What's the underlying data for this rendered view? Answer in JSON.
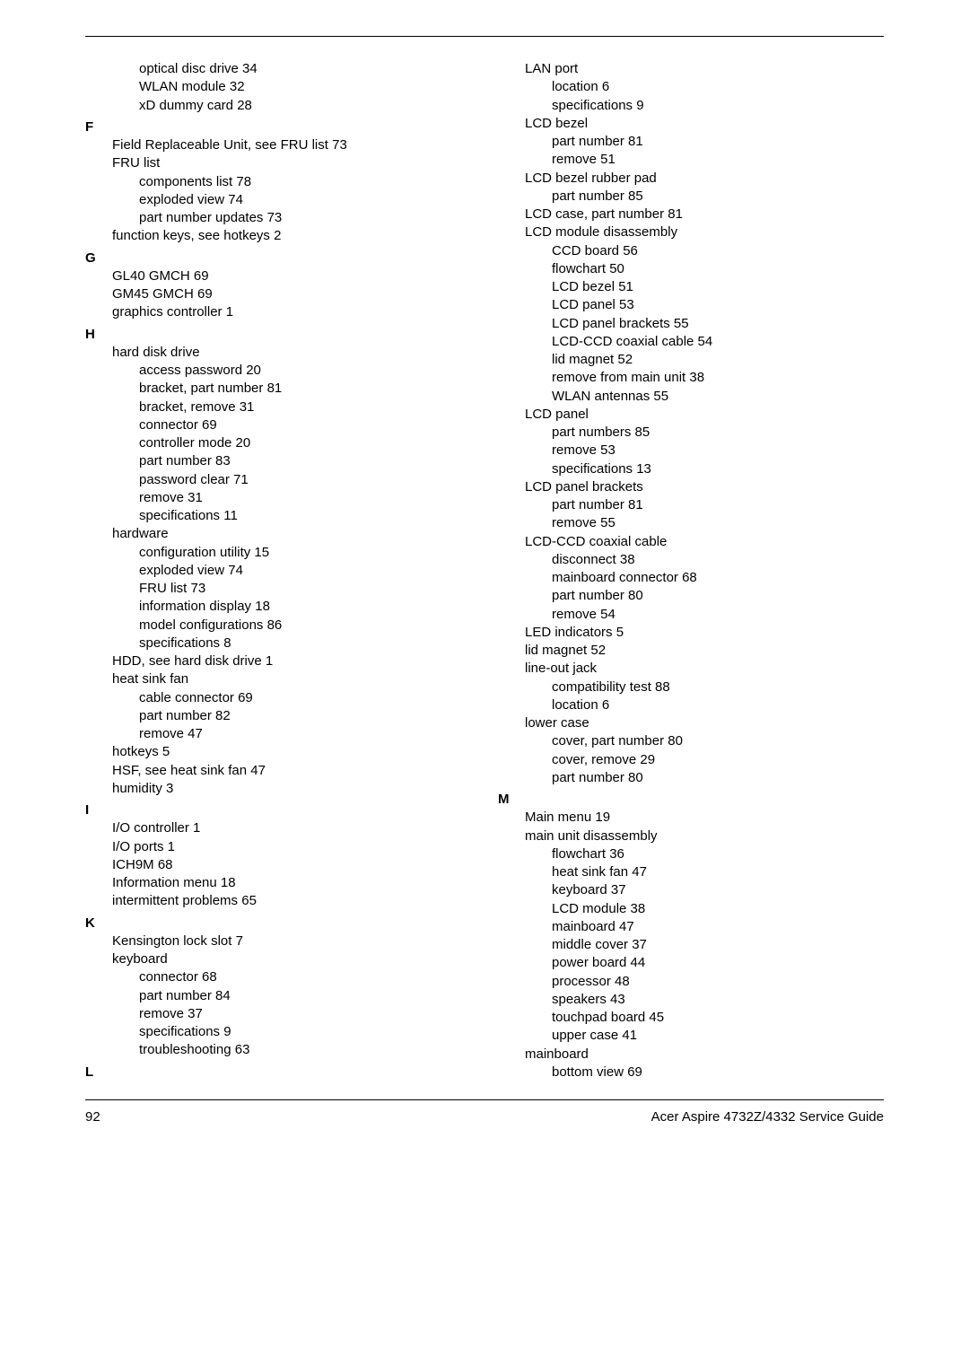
{
  "footer": {
    "page_number": "92",
    "title": "Acer Aspire 4732Z/4332 Service Guide"
  },
  "left": [
    {
      "cls": "lvl2",
      "t": "optical disc drive 34"
    },
    {
      "cls": "lvl2",
      "t": "WLAN module 32"
    },
    {
      "cls": "lvl2",
      "t": "xD dummy card 28"
    },
    {
      "cls": "letter",
      "t": "F"
    },
    {
      "cls": "lvl1",
      "t": "Field Replaceable Unit, see FRU list 73"
    },
    {
      "cls": "lvl1",
      "t": "FRU list"
    },
    {
      "cls": "lvl2",
      "t": "components list 78"
    },
    {
      "cls": "lvl2",
      "t": "exploded view 74"
    },
    {
      "cls": "lvl2",
      "t": "part number updates 73"
    },
    {
      "cls": "lvl1",
      "t": "function keys, see hotkeys 2"
    },
    {
      "cls": "letter",
      "t": "G"
    },
    {
      "cls": "lvl1",
      "t": "GL40 GMCH 69"
    },
    {
      "cls": "lvl1",
      "t": "GM45 GMCH 69"
    },
    {
      "cls": "lvl1",
      "t": "graphics controller 1"
    },
    {
      "cls": "letter",
      "t": "H"
    },
    {
      "cls": "lvl1",
      "t": "hard disk drive"
    },
    {
      "cls": "lvl2",
      "t": "access password 20"
    },
    {
      "cls": "lvl2",
      "t": "bracket, part number 81"
    },
    {
      "cls": "lvl2",
      "t": "bracket, remove 31"
    },
    {
      "cls": "lvl2",
      "t": "connector 69"
    },
    {
      "cls": "lvl2",
      "t": "controller mode 20"
    },
    {
      "cls": "lvl2",
      "t": "part number 83"
    },
    {
      "cls": "lvl2",
      "t": "password clear 71"
    },
    {
      "cls": "lvl2",
      "t": "remove 31"
    },
    {
      "cls": "lvl2",
      "t": "specifications 11"
    },
    {
      "cls": "lvl1",
      "t": "hardware"
    },
    {
      "cls": "lvl2",
      "t": "configuration utility 15"
    },
    {
      "cls": "lvl2",
      "t": "exploded view 74"
    },
    {
      "cls": "lvl2",
      "t": "FRU list 73"
    },
    {
      "cls": "lvl2",
      "t": "information display 18"
    },
    {
      "cls": "lvl2",
      "t": "model configurations 86"
    },
    {
      "cls": "lvl2",
      "t": "specifications 8"
    },
    {
      "cls": "lvl1",
      "t": "HDD, see hard disk drive 1"
    },
    {
      "cls": "lvl1",
      "t": "heat sink fan"
    },
    {
      "cls": "lvl2",
      "t": "cable connector 69"
    },
    {
      "cls": "lvl2",
      "t": "part number 82"
    },
    {
      "cls": "lvl2",
      "t": "remove 47"
    },
    {
      "cls": "lvl1",
      "t": "hotkeys 5"
    },
    {
      "cls": "lvl1",
      "t": "HSF, see heat sink fan 47"
    },
    {
      "cls": "lvl1",
      "t": "humidity 3"
    },
    {
      "cls": "letter",
      "t": "I"
    },
    {
      "cls": "lvl1",
      "t": "I/O controller 1"
    },
    {
      "cls": "lvl1",
      "t": "I/O ports 1"
    },
    {
      "cls": "lvl1",
      "t": "ICH9M 68"
    },
    {
      "cls": "lvl1",
      "t": "Information menu 18"
    },
    {
      "cls": "lvl1",
      "t": "intermittent problems 65"
    },
    {
      "cls": "letter",
      "t": "K"
    },
    {
      "cls": "lvl1",
      "t": "Kensington lock slot 7"
    },
    {
      "cls": "lvl1",
      "t": "keyboard"
    },
    {
      "cls": "lvl2",
      "t": "connector 68"
    },
    {
      "cls": "lvl2",
      "t": "part number 84"
    },
    {
      "cls": "lvl2",
      "t": "remove 37"
    },
    {
      "cls": "lvl2",
      "t": "specifications 9"
    },
    {
      "cls": "lvl2",
      "t": "troubleshooting 63"
    },
    {
      "cls": "letter",
      "t": "L"
    }
  ],
  "right": [
    {
      "cls": "lvl1",
      "t": "LAN port"
    },
    {
      "cls": "lvl2",
      "t": "location 6"
    },
    {
      "cls": "lvl2",
      "t": "specifications 9"
    },
    {
      "cls": "lvl1",
      "t": "LCD bezel"
    },
    {
      "cls": "lvl2",
      "t": "part number 81"
    },
    {
      "cls": "lvl2",
      "t": "remove 51"
    },
    {
      "cls": "lvl1",
      "t": "LCD bezel rubber pad"
    },
    {
      "cls": "lvl2",
      "t": "part number 85"
    },
    {
      "cls": "lvl1",
      "t": "LCD case, part number 81"
    },
    {
      "cls": "lvl1",
      "t": "LCD module disassembly"
    },
    {
      "cls": "lvl2",
      "t": "CCD board 56"
    },
    {
      "cls": "lvl2",
      "t": "flowchart 50"
    },
    {
      "cls": "lvl2",
      "t": "LCD bezel 51"
    },
    {
      "cls": "lvl2",
      "t": "LCD panel 53"
    },
    {
      "cls": "lvl2",
      "t": "LCD panel brackets 55"
    },
    {
      "cls": "lvl2",
      "t": "LCD-CCD coaxial cable 54"
    },
    {
      "cls": "lvl2",
      "t": "lid magnet 52"
    },
    {
      "cls": "lvl2",
      "t": "remove from main unit 38"
    },
    {
      "cls": "lvl2",
      "t": "WLAN antennas 55"
    },
    {
      "cls": "lvl1",
      "t": "LCD panel"
    },
    {
      "cls": "lvl2",
      "t": "part numbers 85"
    },
    {
      "cls": "lvl2",
      "t": "remove 53"
    },
    {
      "cls": "lvl2",
      "t": "specifications 13"
    },
    {
      "cls": "lvl1",
      "t": "LCD panel brackets"
    },
    {
      "cls": "lvl2",
      "t": "part number 81"
    },
    {
      "cls": "lvl2",
      "t": "remove 55"
    },
    {
      "cls": "lvl1",
      "t": "LCD-CCD coaxial cable"
    },
    {
      "cls": "lvl2",
      "t": "disconnect 38"
    },
    {
      "cls": "lvl2",
      "t": "mainboard connector 68"
    },
    {
      "cls": "lvl2",
      "t": "part number 80"
    },
    {
      "cls": "lvl2",
      "t": "remove 54"
    },
    {
      "cls": "lvl1",
      "t": "LED indicators 5"
    },
    {
      "cls": "lvl1",
      "t": "lid magnet 52"
    },
    {
      "cls": "lvl1",
      "t": "line-out jack"
    },
    {
      "cls": "lvl2",
      "t": "compatibility test 88"
    },
    {
      "cls": "lvl2",
      "t": "location 6"
    },
    {
      "cls": "lvl1",
      "t": "lower case"
    },
    {
      "cls": "lvl2",
      "t": "cover, part number 80"
    },
    {
      "cls": "lvl2",
      "t": "cover, remove 29"
    },
    {
      "cls": "lvl2",
      "t": "part number 80"
    },
    {
      "cls": "letter",
      "t": "M"
    },
    {
      "cls": "lvl1",
      "t": "Main menu 19"
    },
    {
      "cls": "lvl1",
      "t": "main unit disassembly"
    },
    {
      "cls": "lvl2",
      "t": "flowchart 36"
    },
    {
      "cls": "lvl2",
      "t": "heat sink fan 47"
    },
    {
      "cls": "lvl2",
      "t": "keyboard 37"
    },
    {
      "cls": "lvl2",
      "t": "LCD module 38"
    },
    {
      "cls": "lvl2",
      "t": "mainboard 47"
    },
    {
      "cls": "lvl2",
      "t": "middle cover 37"
    },
    {
      "cls": "lvl2",
      "t": "power board 44"
    },
    {
      "cls": "lvl2",
      "t": "processor 48"
    },
    {
      "cls": "lvl2",
      "t": "speakers 43"
    },
    {
      "cls": "lvl2",
      "t": "touchpad board 45"
    },
    {
      "cls": "lvl2",
      "t": "upper case 41"
    },
    {
      "cls": "lvl1",
      "t": "mainboard"
    },
    {
      "cls": "lvl2",
      "t": "bottom view 69"
    }
  ]
}
